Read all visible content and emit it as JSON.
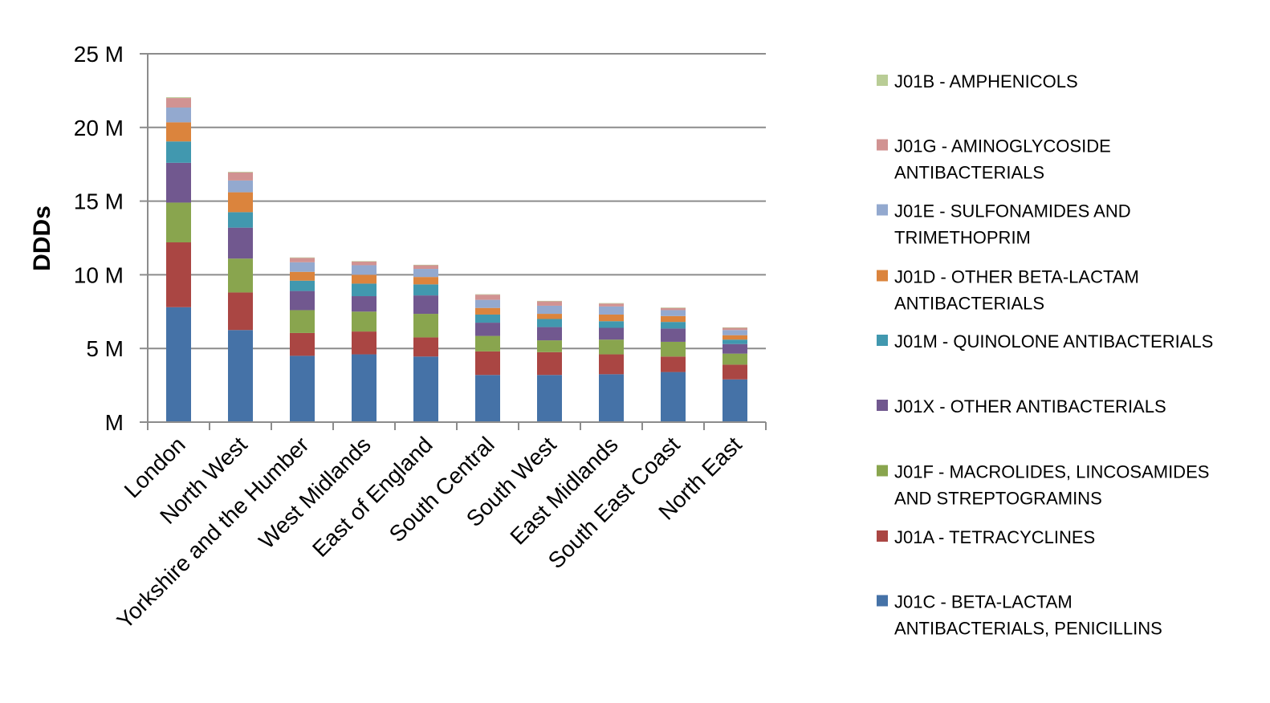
{
  "chart_data": {
    "type": "bar",
    "stacked": true,
    "title": "",
    "xlabel": "",
    "ylabel": "DDDs",
    "ylim": [
      0,
      25000000
    ],
    "yticks": [
      0,
      5000000,
      10000000,
      15000000,
      20000000,
      25000000
    ],
    "ytick_labels": [
      "M",
      "5 M",
      "10 M",
      "15 M",
      "20 M",
      "25 M"
    ],
    "grid": true,
    "legend_position": "right",
    "categories": [
      "London",
      "North West",
      "Yorkshire and the Humber",
      "West Midlands",
      "East of England",
      "South Central",
      "South West",
      "East Midlands",
      "South East Coast",
      "North East"
    ],
    "series": [
      {
        "name": "J01C - BETA-LACTAM ANTIBACTERIALS, PENICILLINS",
        "legend_lines": [
          "J01C - BETA-LACTAM",
          "ANTIBACTERIALS, PENICILLINS"
        ],
        "color": "#4572A7",
        "values": [
          7800000,
          6250000,
          4500000,
          4600000,
          4450000,
          3200000,
          3200000,
          3250000,
          3400000,
          2900000
        ]
      },
      {
        "name": "J01A - TETRACYCLINES",
        "legend_lines": [
          "J01A - TETRACYCLINES"
        ],
        "color": "#AA4643",
        "values": [
          4400000,
          2550000,
          1550000,
          1550000,
          1300000,
          1600000,
          1550000,
          1350000,
          1050000,
          1000000
        ]
      },
      {
        "name": "J01F - MACROLIDES, LINCOSAMIDES AND STREPTOGRAMINS",
        "legend_lines": [
          "J01F - MACROLIDES, LINCOSAMIDES",
          "AND STREPTOGRAMINS"
        ],
        "color": "#89A54E",
        "values": [
          2700000,
          2300000,
          1550000,
          1350000,
          1600000,
          1050000,
          800000,
          1000000,
          1000000,
          750000
        ]
      },
      {
        "name": "J01X - OTHER ANTIBACTERIALS",
        "legend_lines": [
          "J01X - OTHER ANTIBACTERIALS"
        ],
        "color": "#71588F",
        "values": [
          2700000,
          2100000,
          1300000,
          1050000,
          1250000,
          900000,
          900000,
          800000,
          900000,
          650000
        ]
      },
      {
        "name": "J01M - QUINOLONE ANTIBACTERIALS",
        "legend_lines": [
          "J01M - QUINOLONE ANTIBACTERIALS"
        ],
        "color": "#4198AF",
        "values": [
          1450000,
          1050000,
          700000,
          850000,
          750000,
          550000,
          550000,
          450000,
          450000,
          300000
        ]
      },
      {
        "name": "J01D - OTHER BETA-LACTAM ANTIBACTERIALS",
        "legend_lines": [
          "J01D - OTHER BETA-LACTAM",
          "ANTIBACTERIALS"
        ],
        "color": "#DB843D",
        "values": [
          1300000,
          1350000,
          600000,
          600000,
          500000,
          450000,
          350000,
          450000,
          400000,
          300000
        ]
      },
      {
        "name": "J01E - SULFONAMIDES AND TRIMETHOPRIM",
        "legend_lines": [
          "J01E - SULFONAMIDES AND",
          "TRIMETHOPRIM"
        ],
        "color": "#93A9CF",
        "values": [
          1000000,
          800000,
          650000,
          650000,
          550000,
          550000,
          550000,
          550000,
          400000,
          350000
        ]
      },
      {
        "name": "J01G - AMINOGLYCOSIDE ANTIBACTERIALS",
        "legend_lines": [
          "J01G - AMINOGLYCOSIDE",
          "ANTIBACTERIALS"
        ],
        "color": "#D19392",
        "values": [
          650000,
          550000,
          300000,
          250000,
          250000,
          350000,
          300000,
          200000,
          150000,
          150000
        ]
      },
      {
        "name": "J01B - AMPHENICOLS",
        "legend_lines": [
          "J01B - AMPHENICOLS"
        ],
        "color": "#B9CD96",
        "values": [
          50000,
          40000,
          30000,
          30000,
          30000,
          30000,
          30000,
          30000,
          30000,
          30000
        ]
      }
    ],
    "legend_order": [
      8,
      7,
      6,
      5,
      4,
      3,
      2,
      1,
      0
    ]
  }
}
